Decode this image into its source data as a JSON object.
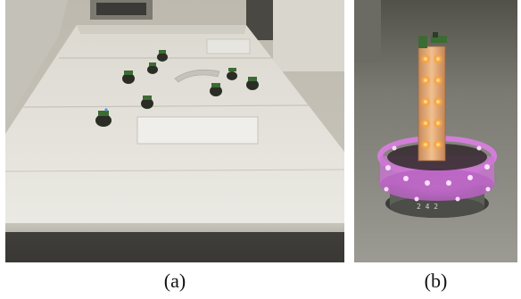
{
  "figure": {
    "panels": [
      {
        "id": "a",
        "caption": "(a)",
        "subject": "arena-with-robots"
      },
      {
        "id": "b",
        "caption": "(b)",
        "subject": "robot-with-led-tower"
      }
    ]
  },
  "colors": {
    "arena_floor": "#e4e2dc",
    "arena_wall": "#cfcdc6",
    "robot_dark": "#2a2d24",
    "robot_green": "#3c6b34",
    "led_orange": "#f7a341",
    "ring_purple": "#d37ed9",
    "tower_body": "#e8b27a"
  }
}
